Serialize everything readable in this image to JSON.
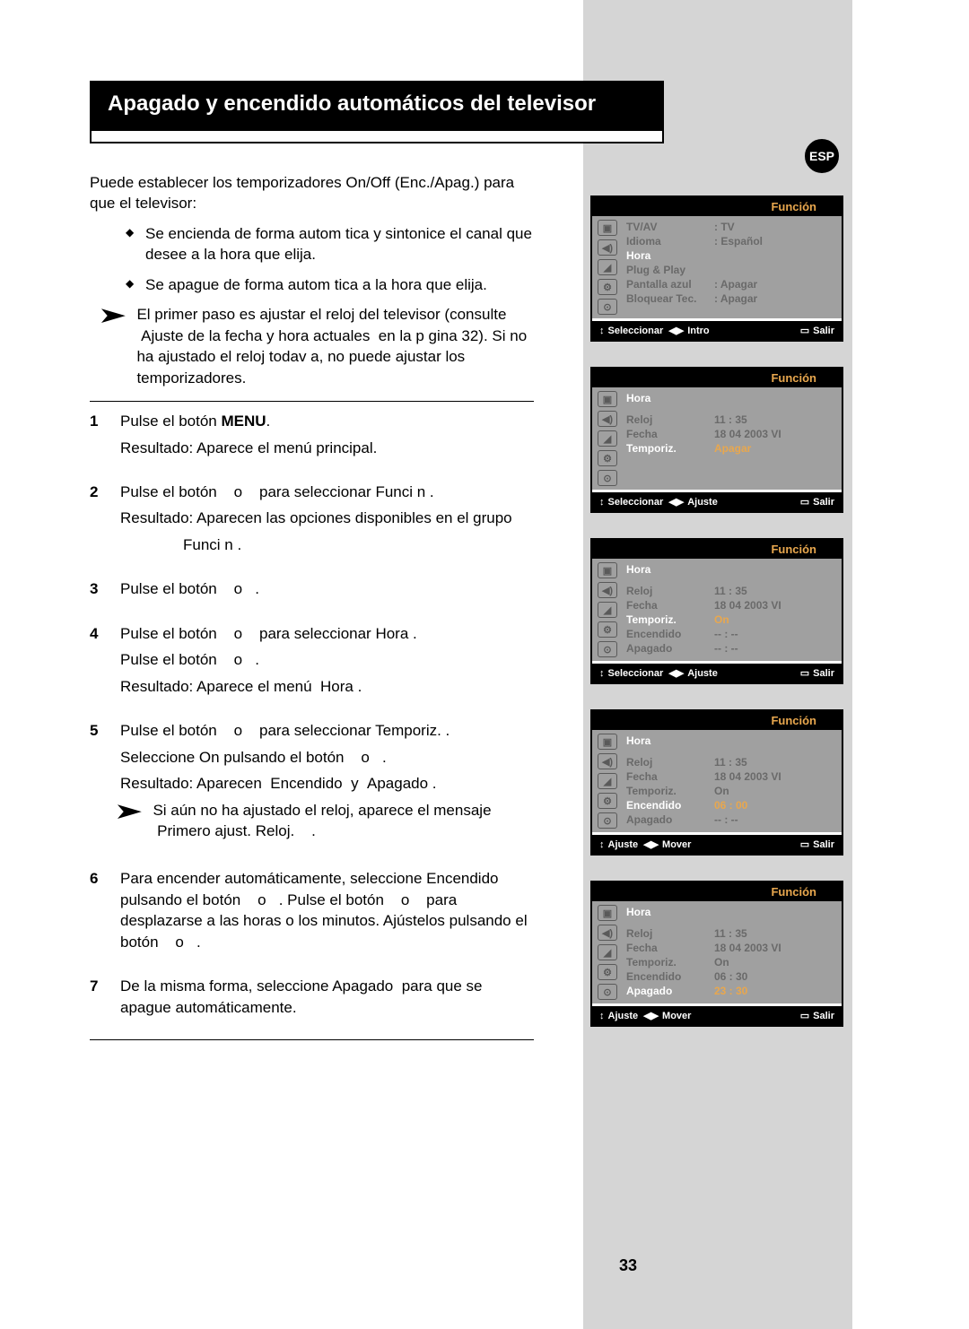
{
  "page_number": "33",
  "lang_badge": "ESP",
  "title": "Apagado y encendido automáticos del televisor",
  "intro": "Puede establecer los temporizadores On/Off (Enc./Apag.) para que el televisor:",
  "bullet1": "Se encienda de forma autom tica y sintonice el canal que desee a la hora que elija.",
  "bullet2": "Se apague de forma autom tica a la hora que elija.",
  "note": "El primer paso es ajustar el reloj del televisor (consulte  Ajuste de la fecha y hora actuales  en la p gina 32). Si no ha ajustado el reloj todav a, no puede ajustar los temporizadores.",
  "steps": [
    {
      "n": "1",
      "lines": [
        "Pulse el botón <b>MENU</b>.",
        "Resultado:  Aparece el menú principal."
      ]
    },
    {
      "n": "2",
      "lines": [
        "Pulse el botón    o    para seleccionar Funci n .",
        "Resultado:  Aparecen las opciones disponibles en el grupo",
        "<span class='indent'>Funci n .</span>"
      ]
    },
    {
      "n": "3",
      "lines": [
        "Pulse el botón    o   ."
      ]
    },
    {
      "n": "4",
      "lines": [
        "Pulse el botón    o    para seleccionar Hora .",
        "Pulse el botón    o   .",
        "Resultado:  Aparece el menú  Hora ."
      ]
    },
    {
      "n": "5",
      "lines": [
        "Pulse el botón    o    para seleccionar Temporiz. .",
        "Seleccione On pulsando el botón    o   .",
        "Resultado:  Aparecen  Encendido  y  Apagado ."
      ],
      "subnote": "Si aún no ha ajustado el reloj, aparece el mensaje  Primero ajust. Reloj.    ."
    },
    {
      "n": "6",
      "lines": [
        "Para encender automáticamente, seleccione Encendido  pulsando el botón    o   . Pulse el botón    o    para desplazarse a las horas o los minutos. Ajústelos pulsando el botón    o   ."
      ]
    },
    {
      "n": "7",
      "lines": [
        "De la misma forma, seleccione Apagado  para que se apague automáticamente."
      ]
    }
  ],
  "osd": {
    "title": "Función",
    "accent": "#e8a74e",
    "panels": [
      {
        "rows": [
          {
            "label": "TV/AV",
            "val": ": TV",
            "sel": false
          },
          {
            "label": "Idioma",
            "val": ": Español",
            "sel": false
          },
          {
            "label": "Hora",
            "val": "",
            "sel": true
          },
          {
            "label": "Plug & Play",
            "val": "",
            "sel": false
          },
          {
            "label": "Pantalla azul",
            "val": ": Apagar",
            "sel": false
          },
          {
            "label": "Bloquear Tec.",
            "val": ": Apagar",
            "sel": false
          }
        ],
        "footer": [
          {
            "i": "↕",
            "t": "Seleccionar"
          },
          {
            "i": "◀▶",
            "t": "Intro"
          },
          {
            "spacer": true
          },
          {
            "i": "▭",
            "t": "Salir"
          }
        ]
      },
      {
        "heading": "Hora",
        "rows": [
          {
            "label": "Reloj",
            "val": "11 : 35",
            "sel": false
          },
          {
            "label": "Fecha",
            "val": "18 04 2003 VI",
            "sel": false
          },
          {
            "label": "Temporiz.",
            "val": "Apagar",
            "sel": true
          }
        ],
        "footer": [
          {
            "i": "↕",
            "t": "Seleccionar"
          },
          {
            "i": "◀▶",
            "t": "Ajuste"
          },
          {
            "spacer": true
          },
          {
            "i": "▭",
            "t": "Salir"
          }
        ]
      },
      {
        "heading": "Hora",
        "rows": [
          {
            "label": "Reloj",
            "val": "11 : 35",
            "sel": false
          },
          {
            "label": "Fecha",
            "val": "18 04 2003 VI",
            "sel": false
          },
          {
            "label": "Temporiz.",
            "val": "On",
            "sel": true
          },
          {
            "label": "Encendido",
            "val": "-- : --",
            "sel": false
          },
          {
            "label": "Apagado",
            "val": "-- : --",
            "sel": false
          }
        ],
        "footer": [
          {
            "i": "↕",
            "t": "Seleccionar"
          },
          {
            "i": "◀▶",
            "t": "Ajuste"
          },
          {
            "spacer": true
          },
          {
            "i": "▭",
            "t": "Salir"
          }
        ]
      },
      {
        "heading": "Hora",
        "rows": [
          {
            "label": "Reloj",
            "val": "11 : 35",
            "sel": false
          },
          {
            "label": "Fecha",
            "val": "18 04 2003 VI",
            "sel": false
          },
          {
            "label": "Temporiz.",
            "val": "On",
            "sel": false
          },
          {
            "label": "Encendido",
            "val": "06 : 00",
            "sel": true
          },
          {
            "label": "Apagado",
            "val": "-- : --",
            "sel": false
          }
        ],
        "footer": [
          {
            "i": "↕",
            "t": "Ajuste"
          },
          {
            "i": "◀▶",
            "t": "Mover"
          },
          {
            "spacer": true
          },
          {
            "i": "▭",
            "t": "Salir"
          }
        ]
      },
      {
        "heading": "Hora",
        "rows": [
          {
            "label": "Reloj",
            "val": "11 : 35",
            "sel": false
          },
          {
            "label": "Fecha",
            "val": "18 04 2003 VI",
            "sel": false
          },
          {
            "label": "Temporiz.",
            "val": "On",
            "sel": false
          },
          {
            "label": "Encendido",
            "val": "06 : 30",
            "sel": false
          },
          {
            "label": "Apagado",
            "val": "23 : 30",
            "sel": true
          }
        ],
        "footer": [
          {
            "i": "↕",
            "t": "Ajuste"
          },
          {
            "i": "◀▶",
            "t": "Mover"
          },
          {
            "spacer": true
          },
          {
            "i": "▭",
            "t": "Salir"
          }
        ]
      }
    ]
  }
}
